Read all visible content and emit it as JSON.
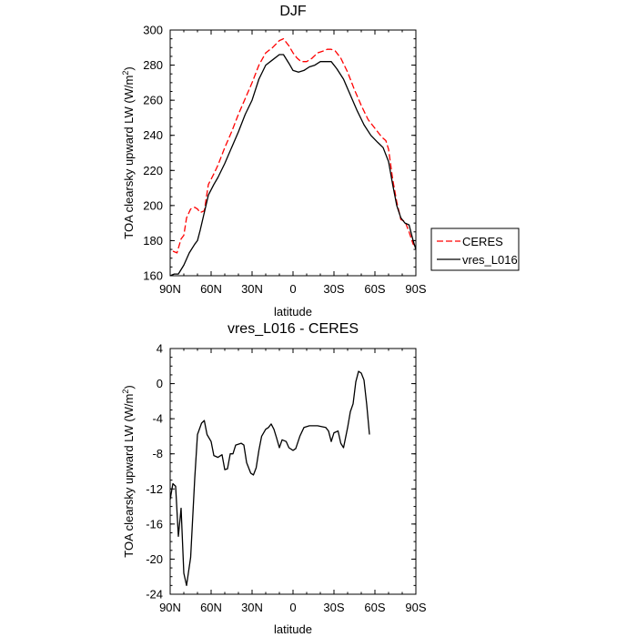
{
  "chart_data": [
    {
      "type": "line",
      "title": "DJF",
      "xlabel": "latitude",
      "ylabel": "TOA clearsky upward LW (W/m²)",
      "ylabel_main": "TOA clearsky upward LW (W/m",
      "ylabel_sup": "2",
      "ylabel_end": ")",
      "xlim": [
        90,
        -90
      ],
      "ylim": [
        160,
        300
      ],
      "xticks": [
        90,
        60,
        30,
        0,
        -30,
        -60,
        -90
      ],
      "xtick_labels": [
        "90N",
        "60N",
        "30N",
        "0",
        "30S",
        "60S",
        "90S"
      ],
      "yticks": [
        160,
        180,
        200,
        220,
        240,
        260,
        280,
        300
      ],
      "ytick_labels": [
        "160",
        "180",
        "200",
        "220",
        "240",
        "260",
        "280",
        "300"
      ],
      "legend_position": "right",
      "series": [
        {
          "name": "CERES",
          "color": "#ff0000",
          "dash": "dashed",
          "points": [
            [
              88,
              174
            ],
            [
              85,
              173
            ],
            [
              82,
              181
            ],
            [
              80,
              183
            ],
            [
              78,
              193
            ],
            [
              75,
              198
            ],
            [
              72,
              199
            ],
            [
              70,
              198
            ],
            [
              68,
              196
            ],
            [
              65,
              197
            ],
            [
              62,
              212
            ],
            [
              58,
              218
            ],
            [
              55,
              223
            ],
            [
              50,
              233
            ],
            [
              45,
              242
            ],
            [
              40,
              252
            ],
            [
              35,
              261
            ],
            [
              30,
              270
            ],
            [
              25,
              280
            ],
            [
              20,
              287
            ],
            [
              15,
              290
            ],
            [
              10,
              294
            ],
            [
              7,
              295
            ],
            [
              3,
              291
            ],
            [
              0,
              287
            ],
            [
              -3,
              284
            ],
            [
              -6,
              282
            ],
            [
              -10,
              282
            ],
            [
              -14,
              284
            ],
            [
              -18,
              287
            ],
            [
              -22,
              288
            ],
            [
              -25,
              289
            ],
            [
              -28,
              289
            ],
            [
              -31,
              288
            ],
            [
              -35,
              284
            ],
            [
              -40,
              276
            ],
            [
              -45,
              266
            ],
            [
              -50,
              257
            ],
            [
              -55,
              249
            ],
            [
              -60,
              244
            ],
            [
              -65,
              239
            ],
            [
              -68,
              237
            ],
            [
              -70,
              232
            ],
            [
              -73,
              215
            ],
            [
              -76,
              202
            ],
            [
              -79,
              192
            ],
            [
              -82,
              191
            ],
            [
              -85,
              185
            ],
            [
              -88,
              178
            ],
            [
              -90,
              177
            ]
          ]
        },
        {
          "name": "vres_L016",
          "color": "#000000",
          "dash": "solid",
          "points": [
            [
              90,
              160
            ],
            [
              87,
              161
            ],
            [
              84,
              161
            ],
            [
              80,
              166
            ],
            [
              76,
              173
            ],
            [
              72,
              178
            ],
            [
              70,
              180
            ],
            [
              68,
              186
            ],
            [
              65,
              196
            ],
            [
              62,
              206
            ],
            [
              58,
              212
            ],
            [
              55,
              216
            ],
            [
              50,
              224
            ],
            [
              45,
              233
            ],
            [
              40,
              242
            ],
            [
              35,
              252
            ],
            [
              30,
              260
            ],
            [
              25,
              272
            ],
            [
              20,
              280
            ],
            [
              15,
              283
            ],
            [
              10,
              286
            ],
            [
              7,
              286
            ],
            [
              3,
              281
            ],
            [
              0,
              277
            ],
            [
              -4,
              276
            ],
            [
              -8,
              277
            ],
            [
              -12,
              279
            ],
            [
              -16,
              280
            ],
            [
              -20,
              282
            ],
            [
              -24,
              282
            ],
            [
              -28,
              282
            ],
            [
              -32,
              278
            ],
            [
              -37,
              272
            ],
            [
              -42,
              263
            ],
            [
              -47,
              254
            ],
            [
              -52,
              246
            ],
            [
              -57,
              240
            ],
            [
              -62,
              236
            ],
            [
              -66,
              233
            ],
            [
              -70,
              225
            ],
            [
              -73,
              212
            ],
            [
              -76,
              200
            ],
            [
              -79,
              193
            ],
            [
              -82,
              190
            ],
            [
              -85,
              189
            ],
            [
              -88,
              180
            ],
            [
              -90,
              175
            ]
          ]
        }
      ]
    },
    {
      "type": "line",
      "title": "vres_L016 - CERES",
      "xlabel": "latitude",
      "ylabel": "TOA clearsky upward LW (W/m²)",
      "ylabel_main": "TOA clearsky upward LW (W/m",
      "ylabel_sup": "2",
      "ylabel_end": ")",
      "xlim": [
        90,
        -90
      ],
      "ylim": [
        -24,
        4
      ],
      "xticks": [
        90,
        60,
        30,
        0,
        -30,
        -60,
        -90
      ],
      "xtick_labels": [
        "90N",
        "60N",
        "30N",
        "0",
        "30S",
        "60S",
        "90S"
      ],
      "yticks": [
        -24,
        -20,
        -16,
        -12,
        -8,
        -4,
        0,
        4
      ],
      "ytick_labels": [
        "-24",
        "-20",
        "-16",
        "-12",
        "-8",
        "-4",
        "0",
        "4"
      ],
      "series": [
        {
          "color": "#000000",
          "dash": "solid",
          "points": [
            [
              90,
              -13.2
            ],
            [
              88,
              -11.4
            ],
            [
              86,
              -11.7
            ],
            [
              84,
              -17.4
            ],
            [
              82,
              -14.2
            ],
            [
              80,
              -21.6
            ],
            [
              78,
              -23.0
            ],
            [
              75,
              -19.8
            ],
            [
              72,
              -10.8
            ],
            [
              70,
              -5.8
            ],
            [
              67,
              -4.5
            ],
            [
              65,
              -4.2
            ],
            [
              63,
              -5.8
            ],
            [
              60,
              -6.6
            ],
            [
              58,
              -8.2
            ],
            [
              55,
              -8.4
            ],
            [
              52,
              -8.1
            ],
            [
              50,
              -9.8
            ],
            [
              48,
              -9.7
            ],
            [
              46,
              -8.0
            ],
            [
              44,
              -8.0
            ],
            [
              42,
              -7.0
            ],
            [
              38,
              -6.8
            ],
            [
              36,
              -7.0
            ],
            [
              34,
              -9.0
            ],
            [
              31,
              -10.2
            ],
            [
              29,
              -10.4
            ],
            [
              27,
              -9.6
            ],
            [
              25,
              -7.6
            ],
            [
              23,
              -6.0
            ],
            [
              20,
              -5.2
            ],
            [
              18,
              -5.0
            ],
            [
              16,
              -4.6
            ],
            [
              14,
              -5.2
            ],
            [
              12,
              -6.2
            ],
            [
              10,
              -7.3
            ],
            [
              8,
              -6.4
            ],
            [
              5,
              -6.6
            ],
            [
              3,
              -7.3
            ],
            [
              0,
              -7.6
            ],
            [
              -2,
              -7.4
            ],
            [
              -5,
              -6.0
            ],
            [
              -8,
              -5.0
            ],
            [
              -12,
              -4.8
            ],
            [
              -18,
              -4.8
            ],
            [
              -24,
              -5.0
            ],
            [
              -26,
              -5.4
            ],
            [
              -28,
              -6.6
            ],
            [
              -30,
              -5.6
            ],
            [
              -33,
              -5.4
            ],
            [
              -35,
              -6.8
            ],
            [
              -37,
              -7.3
            ],
            [
              -40,
              -5.0
            ],
            [
              -42,
              -3.2
            ],
            [
              -44,
              -2.3
            ],
            [
              -46,
              0.2
            ],
            [
              -48,
              1.4
            ],
            [
              -50,
              1.2
            ],
            [
              -52,
              0.4
            ],
            [
              -54,
              -2.4
            ],
            [
              -56,
              -5.8
            ]
          ]
        }
      ]
    }
  ]
}
